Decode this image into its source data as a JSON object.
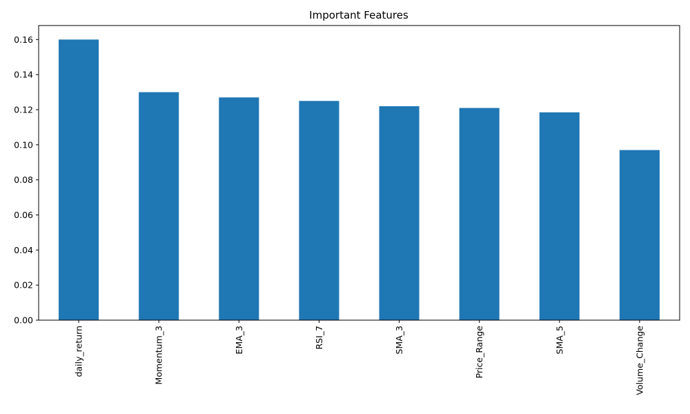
{
  "chart_data": {
    "type": "bar",
    "title": "Important Features",
    "xlabel": "",
    "ylabel": "",
    "categories": [
      "daily_return",
      "Momentum_3",
      "EMA_3",
      "RSI_7",
      "SMA_3",
      "Price_Range",
      "SMA_5",
      "Volume_Change"
    ],
    "values": [
      0.16,
      0.13,
      0.127,
      0.125,
      0.122,
      0.121,
      0.1185,
      0.097
    ],
    "yticks": [
      "0.00",
      "0.02",
      "0.04",
      "0.06",
      "0.08",
      "0.10",
      "0.12",
      "0.14",
      "0.16"
    ],
    "ylim": [
      0,
      0.168
    ],
    "grid": false,
    "legend": "none",
    "bar_color": "#1f77b4",
    "x_tick_rotation": "vertical"
  }
}
